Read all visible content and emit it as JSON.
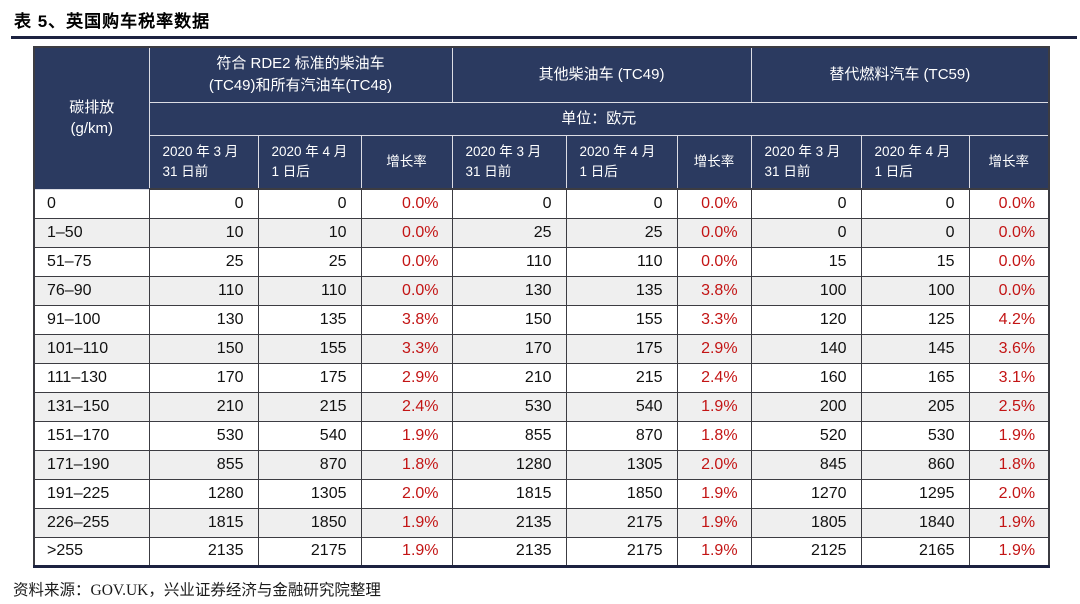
{
  "title": "表 5、英国购车税率数据",
  "source_note": "资料来源：GOV.UK，兴业证券经济与金融研究院整理",
  "colors": {
    "header_bg": "#2b3a60",
    "header_text": "#ffffff",
    "percent_red": "#c31414",
    "row_stripe": "#efefef",
    "border_dark": "#3c3c42",
    "accent_line": "#1c2240"
  },
  "table": {
    "corner_header": "碳排放\n(g/km)",
    "unit_label": "单位：欧元",
    "groups": [
      {
        "label": "符合 RDE2 标准的柴油车\n(TC49)和所有汽油车(TC48)"
      },
      {
        "label": "其他柴油车 (TC49)"
      },
      {
        "label": "替代燃料汽车 (TC59)"
      }
    ],
    "sub_headers": [
      "2020 年 3 月\n31 日前",
      "2020 年 4 月\n1 日后",
      "增长率"
    ],
    "rows": [
      [
        "0",
        "0",
        "0",
        "0.0%",
        "0",
        "0",
        "0.0%",
        "0",
        "0",
        "0.0%"
      ],
      [
        "1–50",
        "10",
        "10",
        "0.0%",
        "25",
        "25",
        "0.0%",
        "0",
        "0",
        "0.0%"
      ],
      [
        "51–75",
        "25",
        "25",
        "0.0%",
        "110",
        "110",
        "0.0%",
        "15",
        "15",
        "0.0%"
      ],
      [
        "76–90",
        "110",
        "110",
        "0.0%",
        "130",
        "135",
        "3.8%",
        "100",
        "100",
        "0.0%"
      ],
      [
        "91–100",
        "130",
        "135",
        "3.8%",
        "150",
        "155",
        "3.3%",
        "120",
        "125",
        "4.2%"
      ],
      [
        "101–110",
        "150",
        "155",
        "3.3%",
        "170",
        "175",
        "2.9%",
        "140",
        "145",
        "3.6%"
      ],
      [
        "111–130",
        "170",
        "175",
        "2.9%",
        "210",
        "215",
        "2.4%",
        "160",
        "165",
        "3.1%"
      ],
      [
        "131–150",
        "210",
        "215",
        "2.4%",
        "530",
        "540",
        "1.9%",
        "200",
        "205",
        "2.5%"
      ],
      [
        "151–170",
        "530",
        "540",
        "1.9%",
        "855",
        "870",
        "1.8%",
        "520",
        "530",
        "1.9%"
      ],
      [
        "171–190",
        "855",
        "870",
        "1.8%",
        "1280",
        "1305",
        "2.0%",
        "845",
        "860",
        "1.8%"
      ],
      [
        "191–225",
        "1280",
        "1305",
        "2.0%",
        "1815",
        "1850",
        "1.9%",
        "1270",
        "1295",
        "2.0%"
      ],
      [
        "226–255",
        "1815",
        "1850",
        "1.9%",
        "2135",
        "2175",
        "1.9%",
        "1805",
        "1840",
        "1.9%"
      ],
      [
        ">255",
        "2135",
        "2175",
        "1.9%",
        "2135",
        "2175",
        "1.9%",
        "2125",
        "2165",
        "1.9%"
      ]
    ]
  }
}
